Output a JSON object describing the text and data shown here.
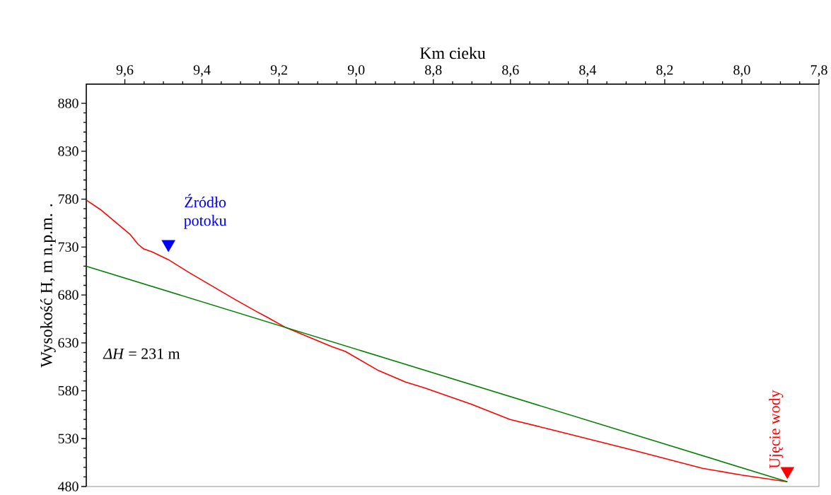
{
  "chart_data": {
    "type": "line",
    "xlabel": "Km cieku",
    "ylabel": "Wysokość H, m n.p.m. .",
    "xlim": [
      9.7,
      7.8
    ],
    "xticks": [
      {
        "value": 9.6,
        "label": "9,6"
      },
      {
        "value": 9.4,
        "label": "9,4"
      },
      {
        "value": 9.2,
        "label": "9,2"
      },
      {
        "value": 9.0,
        "label": "9,0"
      },
      {
        "value": 8.8,
        "label": "8,8"
      },
      {
        "value": 8.6,
        "label": "8,6"
      },
      {
        "value": 8.4,
        "label": "8,4"
      },
      {
        "value": 8.2,
        "label": "8,2"
      },
      {
        "value": 8.0,
        "label": "8,0"
      },
      {
        "value": 7.8,
        "label": "7,8"
      }
    ],
    "ylim": [
      480,
      900
    ],
    "yticks": [
      480,
      530,
      580,
      630,
      680,
      730,
      780,
      830,
      880
    ],
    "series": [
      {
        "color": "#ff0000",
        "x": [
          9.7,
          9.663,
          9.586,
          9.566,
          9.551,
          9.53,
          9.488,
          9.432,
          9.313,
          9.26,
          9.232,
          9.183,
          9.063,
          9.028,
          8.942,
          8.872,
          8.823,
          8.702,
          8.601,
          8.5,
          8.283,
          8.102,
          8.001,
          7.882
        ],
        "values": [
          779,
          769,
          743,
          733,
          728,
          725,
          717,
          703,
          675,
          663,
          657,
          646,
          626,
          621,
          601,
          589,
          583,
          566,
          550,
          540,
          518,
          499,
          492,
          485
        ]
      },
      {
        "color": "#008000",
        "x": [
          9.7,
          7.882
        ],
        "values": [
          710,
          485
        ]
      },
      {
        "type": "scatter",
        "marker": "triangle",
        "color": "#0000ff",
        "x": [
          9.487
        ],
        "values": [
          733
        ]
      },
      {
        "type": "scatter",
        "marker": "triangle",
        "color": "#ff0000",
        "x": [
          7.882
        ],
        "values": [
          496
        ]
      }
    ],
    "annotations": [
      {
        "text": "Źródło potoku",
        "x": 9.487,
        "y": 733
      },
      {
        "text": "Ujęcie wody",
        "x": 7.882,
        "y": 496
      },
      "*ΔH* = 231 m"
    ]
  }
}
